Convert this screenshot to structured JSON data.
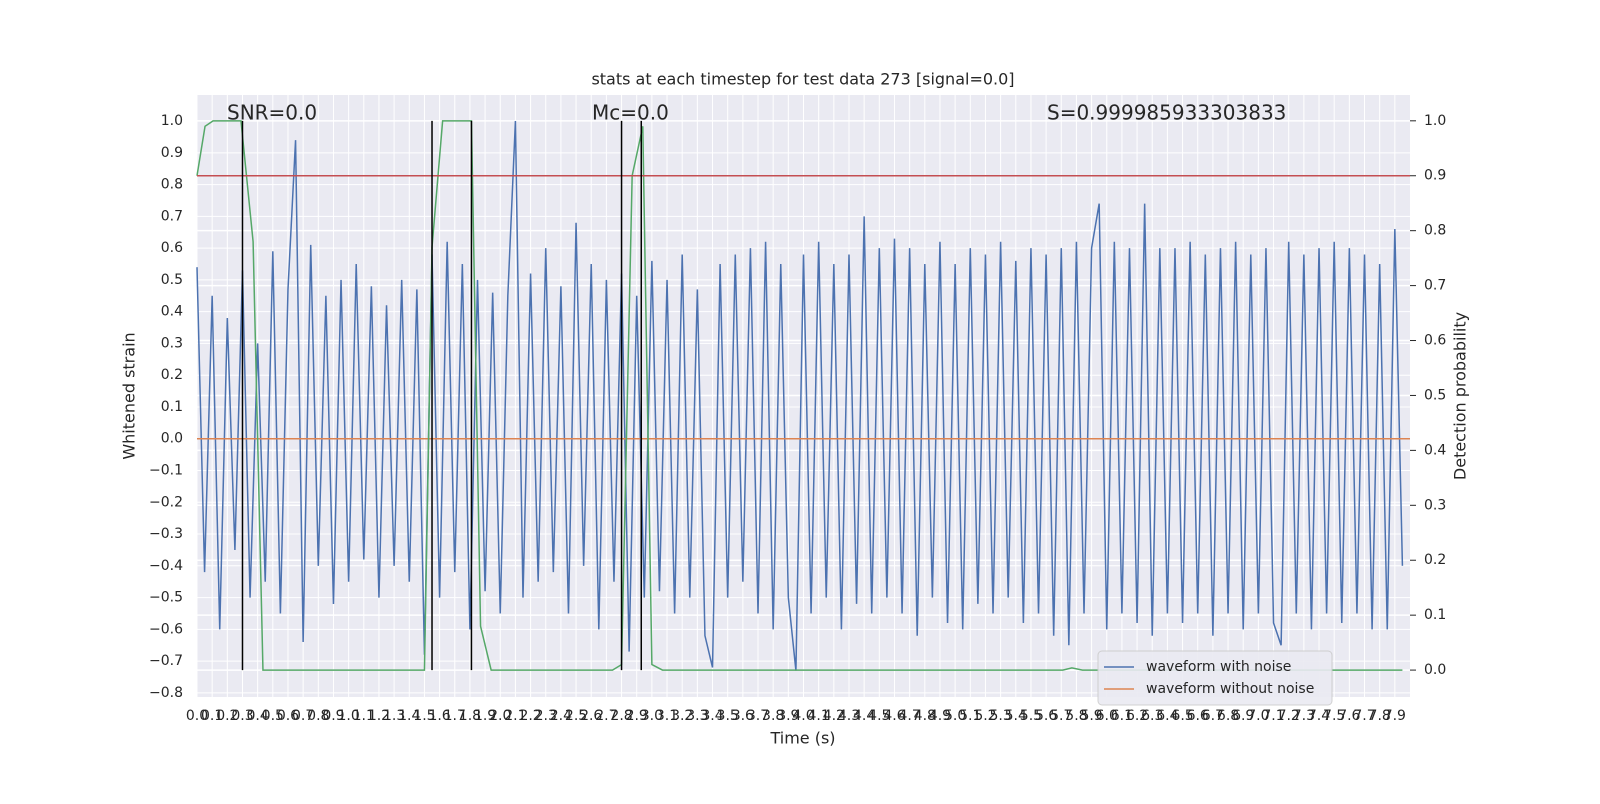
{
  "chart_data": {
    "type": "line",
    "title": "stats at each timestep for test data 273 [signal=0.0]",
    "x_label": "Time (s)",
    "y_label": "Whitened strain",
    "y2_label": "Detection probability",
    "annotations": [
      "SNR=0.0",
      "Mc=0.0",
      "S=0.999985933303833"
    ],
    "grid": true,
    "legend": "lower right",
    "xlim": [
      0,
      8.0
    ],
    "ylim": [
      -0.813,
      1.082
    ],
    "y2lim": [
      -0.049,
      1.047
    ],
    "xticks": [
      {
        "value": 0.0,
        "label": "0.0"
      },
      {
        "value": 0.1,
        "label": "0.1"
      },
      {
        "value": 0.2,
        "label": "0.2"
      },
      {
        "value": 0.3,
        "label": "0.3"
      },
      {
        "value": 0.4,
        "label": "0.4"
      },
      {
        "value": 0.5,
        "label": "0.5"
      },
      {
        "value": 0.6,
        "label": "0.6"
      },
      {
        "value": 0.7,
        "label": "0.7"
      },
      {
        "value": 0.8,
        "label": "0.8"
      },
      {
        "value": 0.9,
        "label": "0.9"
      },
      {
        "value": 1.0,
        "label": "1.0"
      },
      {
        "value": 1.1,
        "label": "1.1"
      },
      {
        "value": 1.2,
        "label": "1.2"
      },
      {
        "value": 1.3,
        "label": "1.3"
      },
      {
        "value": 1.4,
        "label": "1.4"
      },
      {
        "value": 1.5,
        "label": "1.5"
      },
      {
        "value": 1.6,
        "label": "1.6"
      },
      {
        "value": 1.7,
        "label": "1.7"
      },
      {
        "value": 1.8,
        "label": "1.8"
      },
      {
        "value": 1.9,
        "label": "1.9"
      },
      {
        "value": 2.0,
        "label": "2.0"
      },
      {
        "value": 2.1,
        "label": "2.1"
      },
      {
        "value": 2.2,
        "label": "2.2"
      },
      {
        "value": 2.3,
        "label": "2.3"
      },
      {
        "value": 2.4,
        "label": "2.4"
      },
      {
        "value": 2.5,
        "label": "2.5"
      },
      {
        "value": 2.6,
        "label": "2.6"
      },
      {
        "value": 2.7,
        "label": "2.7"
      },
      {
        "value": 2.8,
        "label": "2.8"
      },
      {
        "value": 2.9,
        "label": "2.9"
      },
      {
        "value": 3.0,
        "label": "3.0"
      },
      {
        "value": 3.1,
        "label": "3.1"
      },
      {
        "value": 3.2,
        "label": "3.2"
      },
      {
        "value": 3.3,
        "label": "3.3"
      },
      {
        "value": 3.4,
        "label": "3.4"
      },
      {
        "value": 3.5,
        "label": "3.5"
      },
      {
        "value": 3.6,
        "label": "3.6"
      },
      {
        "value": 3.7,
        "label": "3.7"
      },
      {
        "value": 3.8,
        "label": "3.8"
      },
      {
        "value": 3.9,
        "label": "3.9"
      },
      {
        "value": 4.0,
        "label": "4.0"
      },
      {
        "value": 4.1,
        "label": "4.1"
      },
      {
        "value": 4.2,
        "label": "4.2"
      },
      {
        "value": 4.3,
        "label": "4.3"
      },
      {
        "value": 4.4,
        "label": "4.4"
      },
      {
        "value": 4.5,
        "label": "4.5"
      },
      {
        "value": 4.6,
        "label": "4.6"
      },
      {
        "value": 4.7,
        "label": "4.7"
      },
      {
        "value": 4.8,
        "label": "4.8"
      },
      {
        "value": 4.9,
        "label": "4.9"
      },
      {
        "value": 5.0,
        "label": "5.0"
      },
      {
        "value": 5.1,
        "label": "5.1"
      },
      {
        "value": 5.2,
        "label": "5.2"
      },
      {
        "value": 5.3,
        "label": "5.3"
      },
      {
        "value": 5.4,
        "label": "5.4"
      },
      {
        "value": 5.5,
        "label": "5.5"
      },
      {
        "value": 5.6,
        "label": "5.6"
      },
      {
        "value": 5.7,
        "label": "5.7"
      },
      {
        "value": 5.8,
        "label": "5.8"
      },
      {
        "value": 5.9,
        "label": "5.9"
      },
      {
        "value": 6.0,
        "label": "6.0"
      },
      {
        "value": 6.1,
        "label": "6.1"
      },
      {
        "value": 6.2,
        "label": "6.2"
      },
      {
        "value": 6.3,
        "label": "6.3"
      },
      {
        "value": 6.4,
        "label": "6.4"
      },
      {
        "value": 6.5,
        "label": "6.5"
      },
      {
        "value": 6.6,
        "label": "6.6"
      },
      {
        "value": 6.7,
        "label": "6.7"
      },
      {
        "value": 6.8,
        "label": "6.8"
      },
      {
        "value": 6.9,
        "label": "6.9"
      },
      {
        "value": 7.0,
        "label": "7.0"
      },
      {
        "value": 7.1,
        "label": "7.1"
      },
      {
        "value": 7.2,
        "label": "7.2"
      },
      {
        "value": 7.3,
        "label": "7.3"
      },
      {
        "value": 7.4,
        "label": "7.4"
      },
      {
        "value": 7.5,
        "label": "7.5"
      },
      {
        "value": 7.6,
        "label": "7.6"
      },
      {
        "value": 7.7,
        "label": "7.7"
      },
      {
        "value": 7.8,
        "label": "7.8"
      },
      {
        "value": 7.9,
        "label": "7.9"
      }
    ],
    "yticks": [
      {
        "value": -0.8,
        "label": "−0.8"
      },
      {
        "value": -0.7,
        "label": "−0.7"
      },
      {
        "value": -0.6,
        "label": "−0.6"
      },
      {
        "value": -0.5,
        "label": "−0.5"
      },
      {
        "value": -0.4,
        "label": "−0.4"
      },
      {
        "value": -0.3,
        "label": "−0.3"
      },
      {
        "value": -0.2,
        "label": "−0.2"
      },
      {
        "value": -0.1,
        "label": "−0.1"
      },
      {
        "value": 0.0,
        "label": "0.0"
      },
      {
        "value": 0.1,
        "label": "0.1"
      },
      {
        "value": 0.2,
        "label": "0.2"
      },
      {
        "value": 0.3,
        "label": "0.3"
      },
      {
        "value": 0.4,
        "label": "0.4"
      },
      {
        "value": 0.5,
        "label": "0.5"
      },
      {
        "value": 0.6,
        "label": "0.6"
      },
      {
        "value": 0.7,
        "label": "0.7"
      },
      {
        "value": 0.8,
        "label": "0.8"
      },
      {
        "value": 0.9,
        "label": "0.9"
      },
      {
        "value": 1.0,
        "label": "1.0"
      }
    ],
    "y2ticks": [
      {
        "value": 0.0,
        "label": "0.0"
      },
      {
        "value": 0.1,
        "label": "0.1"
      },
      {
        "value": 0.2,
        "label": "0.2"
      },
      {
        "value": 0.3,
        "label": "0.3"
      },
      {
        "value": 0.4,
        "label": "0.4"
      },
      {
        "value": 0.5,
        "label": "0.5"
      },
      {
        "value": 0.6,
        "label": "0.6"
      },
      {
        "value": 0.7,
        "label": "0.7"
      },
      {
        "value": 0.8,
        "label": "0.8"
      },
      {
        "value": 0.9,
        "label": "0.9"
      },
      {
        "value": 1.0,
        "label": "1.0"
      }
    ],
    "series": [
      {
        "name": "waveform with noise",
        "color": "#4c72b0",
        "x": [
          0,
          0.05,
          0.1,
          0.15,
          0.2,
          0.25,
          0.3,
          0.35,
          0.4,
          0.45,
          0.5,
          0.55,
          0.6,
          0.65,
          0.7,
          0.75,
          0.8,
          0.85,
          0.9,
          0.95,
          1.0,
          1.05,
          1.1,
          1.15,
          1.2,
          1.25,
          1.3,
          1.35,
          1.4,
          1.45,
          1.5,
          1.55,
          1.6,
          1.65,
          1.7,
          1.75,
          1.8,
          1.85,
          1.9,
          1.95,
          2.0,
          2.05,
          2.1,
          2.15,
          2.2,
          2.25,
          2.3,
          2.35,
          2.4,
          2.45,
          2.5,
          2.55,
          2.6,
          2.65,
          2.7,
          2.75,
          2.8,
          2.85,
          2.9,
          2.95,
          3.0,
          3.05,
          3.1,
          3.15,
          3.2,
          3.25,
          3.3,
          3.35,
          3.4,
          3.45,
          3.5,
          3.55,
          3.6,
          3.65,
          3.7,
          3.75,
          3.8,
          3.85,
          3.9,
          3.95,
          4.0,
          4.05,
          4.1,
          4.15,
          4.2,
          4.25,
          4.3,
          4.35,
          4.4,
          4.45,
          4.5,
          4.55,
          4.6,
          4.65,
          4.7,
          4.75,
          4.8,
          4.85,
          4.9,
          4.95,
          5.0,
          5.05,
          5.1,
          5.15,
          5.2,
          5.25,
          5.3,
          5.35,
          5.4,
          5.45,
          5.5,
          5.55,
          5.6,
          5.65,
          5.7,
          5.75,
          5.8,
          5.85,
          5.9,
          5.95,
          6.0,
          6.05,
          6.1,
          6.15,
          6.2,
          6.25,
          6.3,
          6.35,
          6.4,
          6.45,
          6.5,
          6.55,
          6.6,
          6.65,
          6.7,
          6.75,
          6.8,
          6.85,
          6.9,
          6.95,
          7.0,
          7.05,
          7.1,
          7.15,
          7.2,
          7.25,
          7.3,
          7.35,
          7.4,
          7.45,
          7.5,
          7.55,
          7.6,
          7.65,
          7.7,
          7.75,
          7.8,
          7.85,
          7.9,
          7.95
        ],
        "values": [
          0.54,
          -0.42,
          0.45,
          -0.6,
          0.38,
          -0.35,
          0.53,
          -0.5,
          0.3,
          -0.45,
          0.59,
          -0.55,
          0.47,
          0.94,
          -0.64,
          0.61,
          -0.4,
          0.45,
          -0.52,
          0.5,
          -0.45,
          0.55,
          -0.38,
          0.48,
          -0.5,
          0.42,
          -0.4,
          0.5,
          -0.45,
          0.47,
          -0.68,
          0.58,
          -0.5,
          0.62,
          -0.42,
          0.55,
          -0.6,
          0.5,
          -0.48,
          0.46,
          -0.55,
          0.45,
          1.0,
          -0.5,
          0.52,
          -0.45,
          0.6,
          -0.42,
          0.48,
          -0.55,
          0.68,
          -0.4,
          0.55,
          -0.6,
          0.5,
          -0.45,
          0.52,
          -0.67,
          0.45,
          -0.5,
          0.56,
          -0.48,
          0.5,
          -0.55,
          0.58,
          -0.5,
          0.47,
          -0.62,
          -0.72,
          0.55,
          -0.5,
          0.58,
          -0.45,
          0.6,
          -0.55,
          0.62,
          -0.6,
          0.55,
          -0.5,
          -0.73,
          0.58,
          -0.55,
          0.62,
          -0.5,
          0.55,
          -0.6,
          0.58,
          -0.52,
          0.7,
          -0.55,
          0.6,
          -0.5,
          0.63,
          -0.55,
          0.6,
          -0.62,
          0.55,
          -0.5,
          0.62,
          -0.58,
          0.55,
          -0.6,
          0.6,
          -0.52,
          0.58,
          -0.55,
          0.62,
          -0.5,
          0.56,
          -0.58,
          0.6,
          -0.55,
          0.58,
          -0.62,
          0.6,
          -0.65,
          0.62,
          -0.55,
          0.6,
          0.74,
          -0.6,
          0.62,
          -0.55,
          0.6,
          -0.58,
          0.74,
          -0.62,
          0.6,
          -0.55,
          0.6,
          -0.58,
          0.62,
          -0.55,
          0.58,
          -0.62,
          0.6,
          -0.55,
          0.62,
          -0.6,
          0.58,
          -0.55,
          0.6,
          -0.58,
          -0.65,
          0.62,
          -0.55,
          0.58,
          -0.6,
          0.6,
          -0.55,
          0.62,
          -0.58,
          0.6,
          -0.55,
          0.58,
          -0.6,
          0.55,
          -0.6,
          0.66,
          -0.4
        ]
      },
      {
        "name": "waveform without noise",
        "color": "#dd8452",
        "x": [
          0,
          8.0
        ],
        "values": [
          0,
          0
        ]
      },
      {
        "color": "#55a868",
        "axis": "y2",
        "x": [
          0,
          0.053,
          0.106,
          0.29,
          0.37,
          0.435,
          0.5,
          1.5,
          1.55,
          1.62,
          1.81,
          1.87,
          1.94,
          2.74,
          2.8,
          2.87,
          2.94,
          3.0,
          3.07,
          5.71,
          5.77,
          5.84,
          7.95
        ],
        "values": [
          0.9,
          0.99,
          1.0,
          1.0,
          0.78,
          0.0,
          0.0,
          0.0,
          0.77,
          1.0,
          1.0,
          0.08,
          0.0,
          0.0,
          0.01,
          0.9,
          0.99,
          0.01,
          0.0,
          0.0,
          0.004,
          0.0,
          0.0
        ]
      }
    ],
    "threshold_line": {
      "value": 0.9,
      "axis": "y2",
      "color": "#c44e52"
    },
    "vlines": {
      "x": [
        0.3,
        1.55,
        1.81,
        2.8,
        2.93
      ],
      "ymin": 0,
      "ymax": 1,
      "axis": "y2",
      "color": "#000000"
    }
  }
}
